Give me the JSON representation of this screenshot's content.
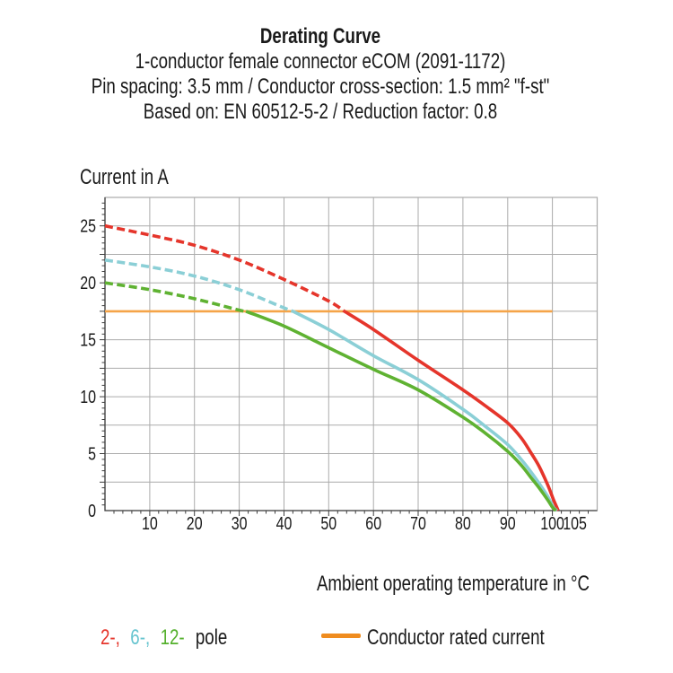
{
  "header": {
    "title": "Derating Curve",
    "line2": "1-conductor female connector eCOM (2091-1172)",
    "line3": "Pin spacing: 3.5 mm / Conductor cross-section: 1.5 mm² \"f-st\"",
    "line4": "Based on: EN 60512-5-2 / Reduction factor: 0.8"
  },
  "chart_data": {
    "type": "line",
    "title": "Derating Curve",
    "y_axis_label": "Current in A",
    "x_axis_label": "Ambient operating temperature in °C",
    "x_range": [
      0,
      110
    ],
    "y_range": [
      0,
      27.5
    ],
    "x_gridline_step": 10,
    "y_gridline_step": 2.5,
    "x_minor_tick_step": 2,
    "y_minor_tick_step": 0.5,
    "x_tick_labels": [
      "10",
      "20",
      "30",
      "40",
      "50",
      "60",
      "70",
      "80",
      "90",
      "100",
      "105"
    ],
    "y_tick_labels": [
      "0",
      "5",
      "10",
      "15",
      "20",
      "25"
    ],
    "grid": "on",
    "rated_current": {
      "value": 17.5,
      "x_start": 0,
      "x_end": 100,
      "color": "#F5A448"
    },
    "dash_note_colors": {
      "grid": "#ABABAB",
      "axis": "#3F3F3F",
      "text": "#1A1A1A"
    },
    "series": [
      {
        "name": "2-pole",
        "color": "#E5352B",
        "solid_from": 53.5,
        "points": [
          [
            0,
            25
          ],
          [
            10,
            24.2
          ],
          [
            20,
            23.3
          ],
          [
            30,
            22
          ],
          [
            40,
            20.3
          ],
          [
            50,
            18.4
          ],
          [
            53.5,
            17.5
          ],
          [
            60,
            15.9
          ],
          [
            70,
            13.2
          ],
          [
            80,
            10.6
          ],
          [
            85,
            9.2
          ],
          [
            90,
            7.7
          ],
          [
            93,
            6.4
          ],
          [
            95,
            5.2
          ],
          [
            97,
            3.9
          ],
          [
            99,
            2.2
          ],
          [
            100.3,
            0.9
          ],
          [
            101.3,
            0
          ]
        ]
      },
      {
        "name": "6-pole",
        "color": "#8BCFD6",
        "solid_from": 42,
        "points": [
          [
            0,
            22
          ],
          [
            10,
            21.4
          ],
          [
            20,
            20.6
          ],
          [
            30,
            19.4
          ],
          [
            40,
            17.8
          ],
          [
            42,
            17.5
          ],
          [
            50,
            15.9
          ],
          [
            60,
            13.6
          ],
          [
            70,
            11.5
          ],
          [
            80,
            8.9
          ],
          [
            85,
            7.4
          ],
          [
            90,
            5.8
          ],
          [
            93,
            4.5
          ],
          [
            95,
            3.5
          ],
          [
            97,
            2.4
          ],
          [
            99,
            1.2
          ],
          [
            100.2,
            0.3
          ],
          [
            101,
            0
          ]
        ]
      },
      {
        "name": "12-pole",
        "color": "#5FB232",
        "solid_from": 31.5,
        "points": [
          [
            0,
            20
          ],
          [
            10,
            19.4
          ],
          [
            20,
            18.6
          ],
          [
            30,
            17.6
          ],
          [
            31.5,
            17.5
          ],
          [
            40,
            16.2
          ],
          [
            50,
            14.3
          ],
          [
            60,
            12.4
          ],
          [
            70,
            10.6
          ],
          [
            80,
            8.2
          ],
          [
            85,
            6.8
          ],
          [
            90,
            5.2
          ],
          [
            93,
            4.0
          ],
          [
            95,
            3.0
          ],
          [
            97,
            2.0
          ],
          [
            99,
            0.9
          ],
          [
            100,
            0.3
          ],
          [
            100.8,
            0
          ]
        ]
      }
    ]
  },
  "legend": {
    "pole_items": [
      {
        "text": "2-,",
        "color": "#E5352B"
      },
      {
        "text": "6-,",
        "color": "#66C4CF"
      },
      {
        "text": "12-",
        "color": "#54B02C"
      }
    ],
    "pole_suffix": "pole",
    "rated_label": "Conductor rated current",
    "rated_swatch_color": "#EF8C1F"
  }
}
